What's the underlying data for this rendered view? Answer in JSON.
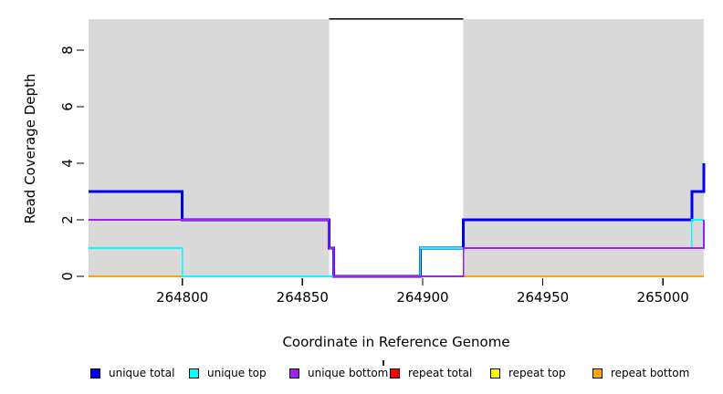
{
  "chart_data": {
    "type": "line",
    "step": true,
    "title": "",
    "xlabel": "Coordinate in Reference Genome",
    "ylabel": "Read Coverage Depth",
    "xlim": [
      264761,
      265017
    ],
    "ylim": [
      0,
      9.1
    ],
    "x_ticks": [
      264800,
      264850,
      264900,
      264950,
      265000
    ],
    "y_ticks": [
      0,
      2,
      4,
      6,
      8
    ],
    "grid": false,
    "legend_position": "bottom",
    "plot_bg_color": "#FFFFFF",
    "background_regions": [
      {
        "name": "left",
        "x1": 264761,
        "x2": 264861,
        "color": "#D9D9D9"
      },
      {
        "name": "right",
        "x1": 264917,
        "x2": 265017,
        "color": "#D9D9D9"
      }
    ],
    "clipped_line": {
      "x1": 264861,
      "x2": 264917,
      "y": 9.1,
      "color": "#000000"
    },
    "series": [
      {
        "name": "repeat bottom",
        "color": "#FFA500",
        "width": 2,
        "segments": [
          [
            [
              264761,
              0
            ],
            [
              264861,
              0
            ]
          ],
          [
            [
              264917,
              0
            ],
            [
              265017,
              0
            ]
          ]
        ]
      },
      {
        "name": "repeat total",
        "color": "#FF0000",
        "width": 2,
        "segments": []
      },
      {
        "name": "repeat top",
        "color": "#FFFF00",
        "width": 2,
        "segments": []
      },
      {
        "name": "unique total",
        "color": "#0000EE",
        "width": 3,
        "segments": [
          [
            [
              264761,
              3
            ],
            [
              264800,
              2
            ],
            [
              264861,
              1
            ],
            [
              264863,
              0
            ],
            [
              264899,
              1
            ],
            [
              264917,
              2
            ],
            [
              265012,
              3
            ],
            [
              265017,
              4
            ]
          ]
        ]
      },
      {
        "name": "unique top",
        "color": "#00FFFF",
        "width": 1.6,
        "segments": [
          [
            [
              264761,
              1
            ],
            [
              264800,
              0
            ],
            [
              264899,
              1
            ],
            [
              265012,
              2
            ],
            [
              265017,
              2
            ]
          ]
        ]
      },
      {
        "name": "unique bottom",
        "color": "#A020F0",
        "width": 1.6,
        "segments": [
          [
            [
              264761,
              2
            ],
            [
              264861,
              1
            ],
            [
              264863,
              0
            ],
            [
              264917,
              1
            ],
            [
              265017,
              2
            ]
          ]
        ]
      }
    ]
  },
  "legend": {
    "items": [
      {
        "label": "unique total",
        "color": "#0000EE"
      },
      {
        "label": "unique top",
        "color": "#00FFFF"
      },
      {
        "label": "unique bottom",
        "color": "#A020F0"
      },
      {
        "label": "repeat total",
        "color": "#FF0000"
      },
      {
        "label": "repeat top",
        "color": "#FFFF00"
      },
      {
        "label": "repeat bottom",
        "color": "#FFA500"
      }
    ]
  }
}
